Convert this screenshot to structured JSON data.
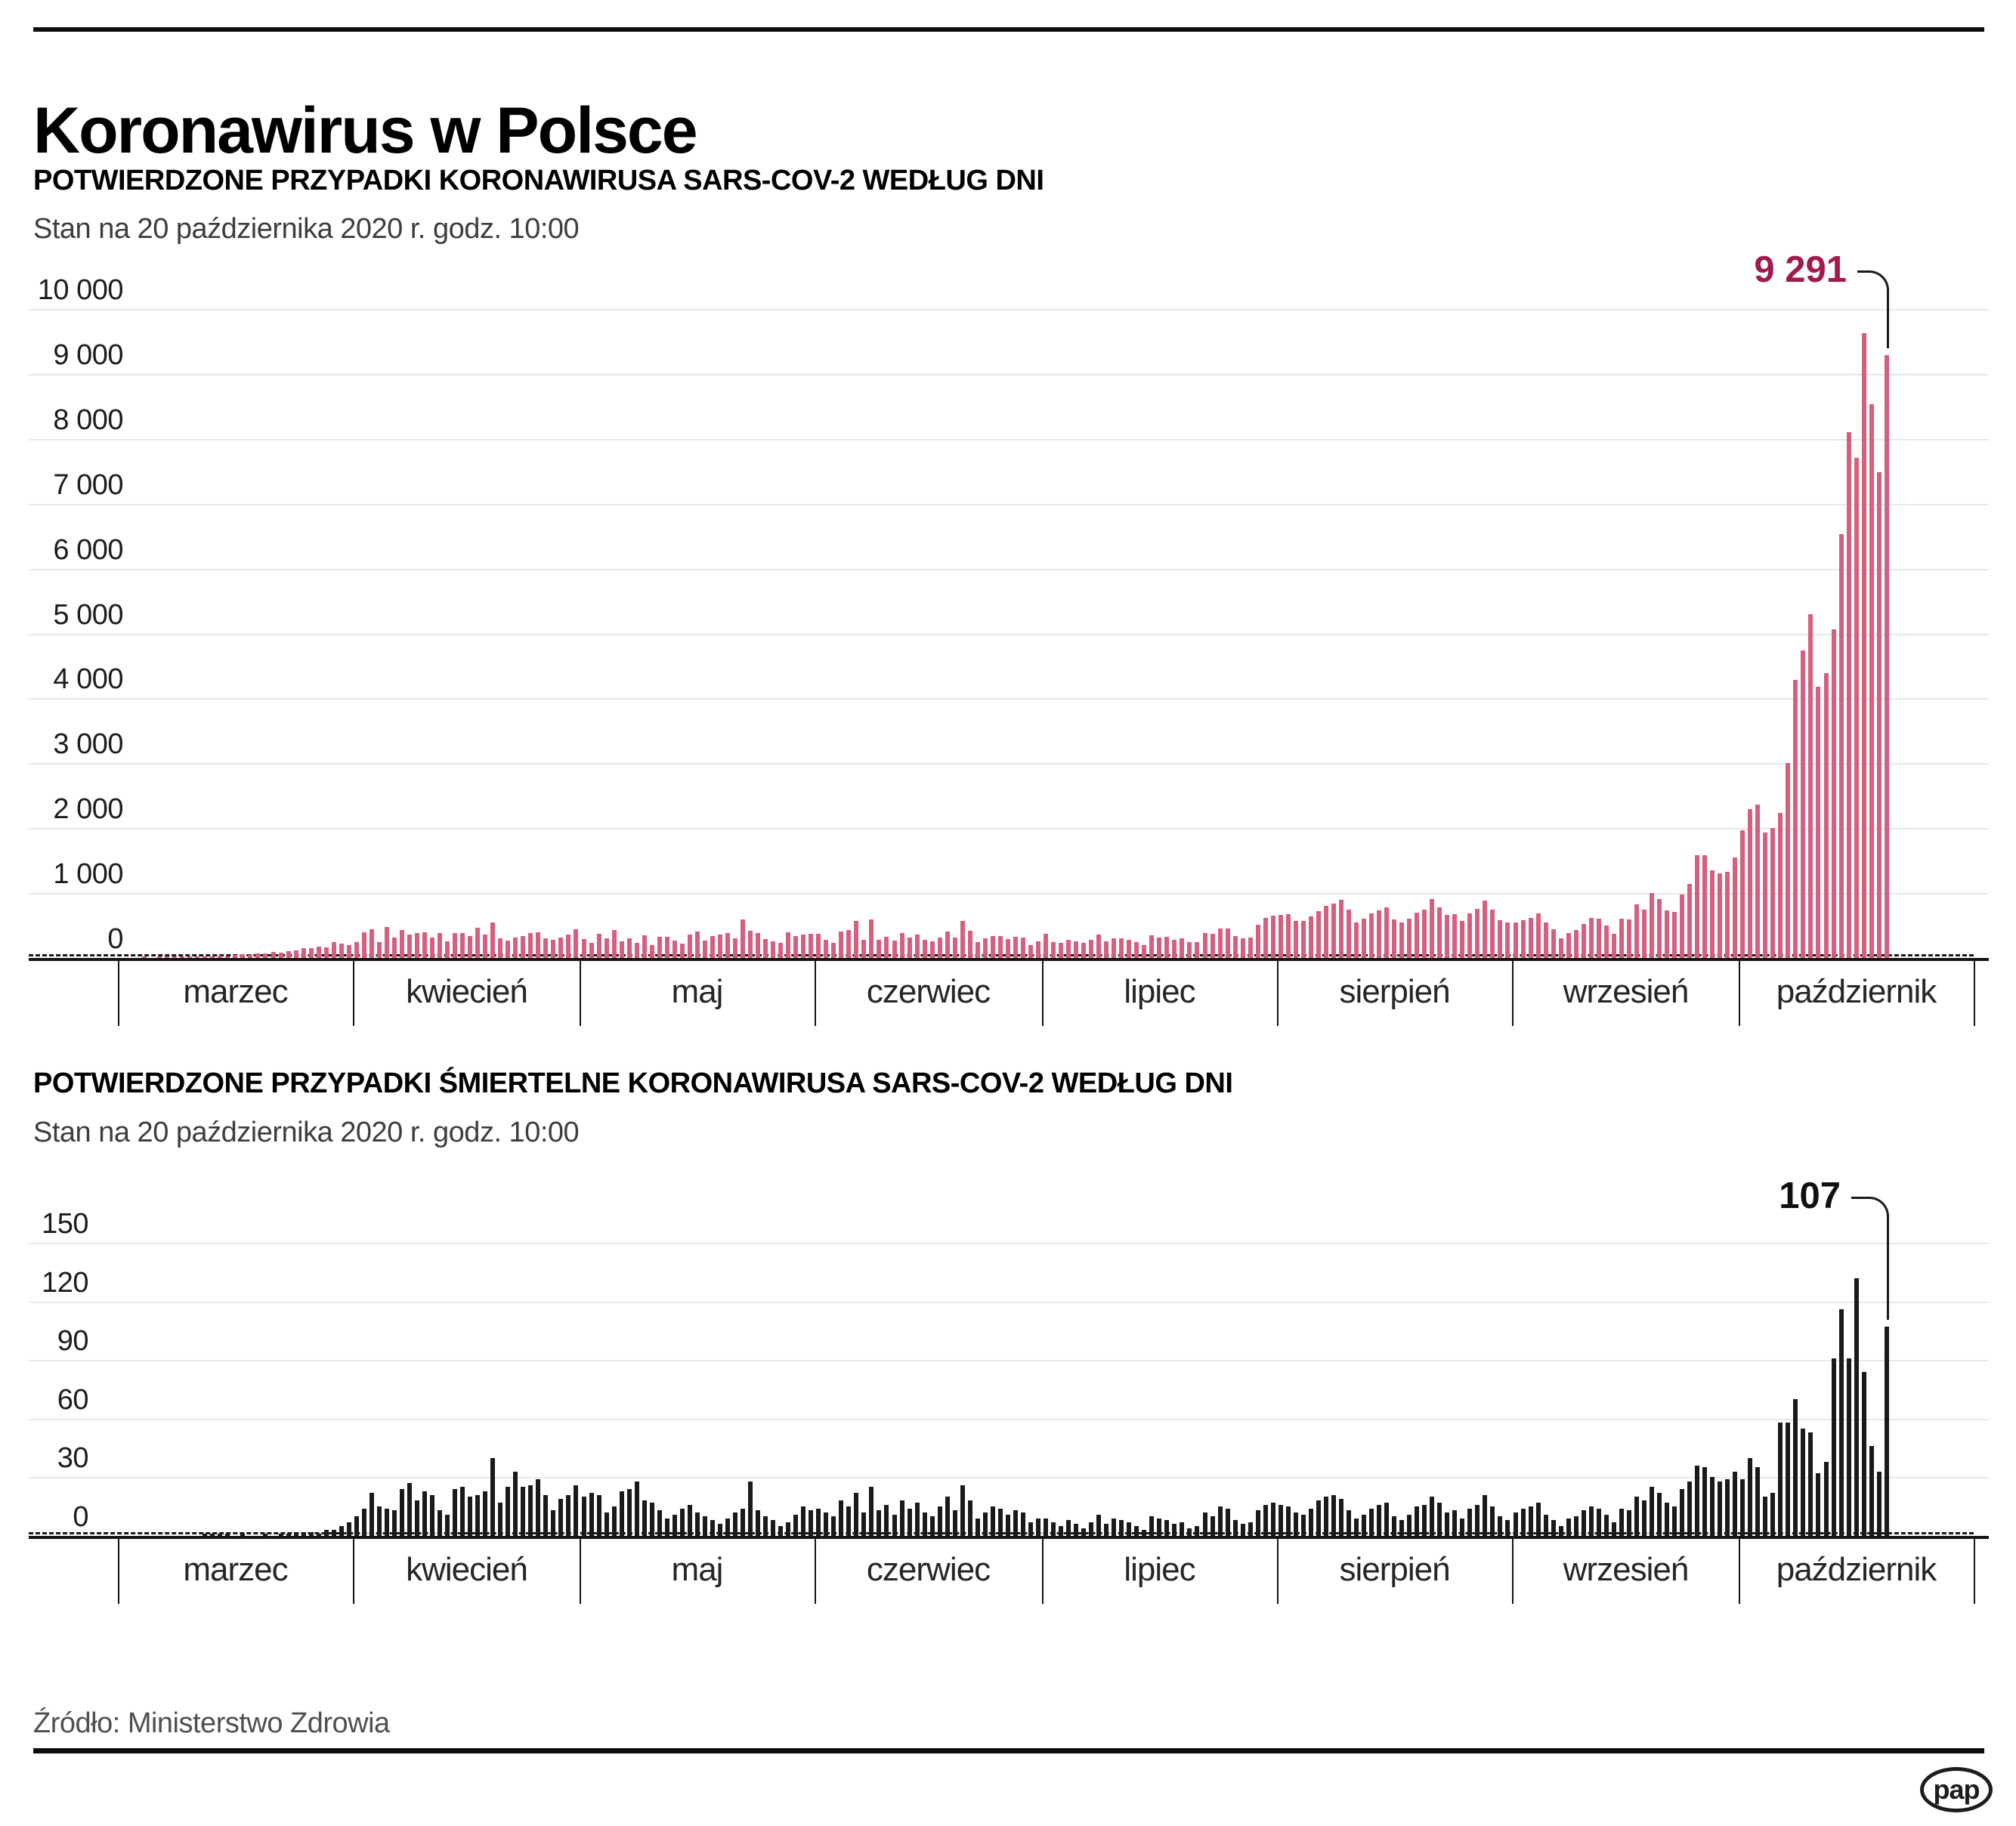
{
  "page": {
    "title": "Koronawirus w Polsce",
    "source": "Źródło: Ministerstwo Zdrowia",
    "logo_text": "pap",
    "grid_color": "#e6e8eb",
    "axis_color": "#141414"
  },
  "chart_data": [
    {
      "type": "bar",
      "title": "POTWIERDZONE PRZYPADKI KORONAWIRUSA SARS-COV-2 WEDŁUG DNI",
      "subtitle": "Stan na 20 października 2020 r. godz. 10:00",
      "ylim": [
        0,
        10000
      ],
      "ytick_values": [
        0,
        1000,
        2000,
        3000,
        4000,
        5000,
        6000,
        7000,
        8000,
        9000,
        10000
      ],
      "ytick_labels": [
        "0",
        "1 000",
        "2 000",
        "3 000",
        "4 000",
        "5 000",
        "6 000",
        "7 000",
        "8 000",
        "9 000",
        "10 000"
      ],
      "grid": true,
      "legend": "none",
      "bar_color": "#d65f7e",
      "annotation": {
        "label": "9 291",
        "value": 9291,
        "color": "#a21a4d",
        "points_to": "ostatni słupek (20 października)"
      },
      "months": [
        {
          "label": "marzec",
          "days": 31,
          "values": [
            0,
            0,
            0,
            1,
            0,
            4,
            1,
            5,
            5,
            6,
            9,
            18,
            19,
            36,
            21,
            52,
            61,
            49,
            68,
            70,
            91,
            82,
            102,
            115,
            152,
            150,
            170,
            168,
            249,
            224,
            193
          ]
        },
        {
          "label": "kwiecień",
          "days": 30,
          "values": [
            243,
            392,
            437,
            244,
            475,
            311,
            435,
            357,
            380,
            401,
            318,
            388,
            260,
            380,
            385,
            336,
            461,
            363,
            545,
            306,
            263,
            313,
            342,
            381,
            401,
            305,
            285,
            316,
            362,
            437
          ]
        },
        {
          "label": "maj",
          "days": 31,
          "values": [
            292,
            235,
            371,
            306,
            425,
            253,
            307,
            232,
            345,
            200,
            330,
            321,
            262,
            225,
            356,
            403,
            272,
            335,
            356,
            383,
            306,
            595,
            416,
            388,
            287,
            255,
            235,
            399,
            340,
            366,
            378
          ]
        },
        {
          "label": "czerwiec",
          "days": 30,
          "values": [
            375,
            285,
            235,
            405,
            435,
            576,
            280,
            599,
            283,
            327,
            264,
            379,
            320,
            364,
            283,
            256,
            317,
            407,
            314,
            576,
            416,
            242,
            300,
            339,
            343,
            294,
            325,
            311,
            193,
            256
          ]
        },
        {
          "label": "lipiec",
          "days": 31,
          "values": [
            371,
            249,
            231,
            278,
            257,
            235,
            279,
            364,
            257,
            299,
            305,
            283,
            247,
            201,
            352,
            316,
            325,
            284,
            302,
            247,
            239,
            380,
            371,
            457,
            458,
            337,
            308,
            316,
            512,
            615,
            657
          ]
        },
        {
          "label": "sierpień",
          "days": 31,
          "values": [
            658,
            680,
            575,
            572,
            640,
            726,
            809,
            843,
            892,
            744,
            551,
            601,
            682,
            731,
            780,
            595,
            542,
            605,
            700,
            746,
            903,
            780,
            662,
            674,
            571,
            682,
            757,
            887,
            745,
            583,
            550
          ]
        },
        {
          "label": "wrzesień",
          "days": 30,
          "values": [
            550,
            580,
            614,
            691,
            548,
            439,
            299,
            385,
            427,
            522,
            618,
            600,
            502,
            378,
            606,
            596,
            827,
            746,
            1002,
            910,
            739,
            711,
            974,
            1136,
            1587,
            1584,
            1350,
            1306,
            1326,
            1552
          ]
        },
        {
          "label": "październik",
          "days": 31,
          "values": [
            1967,
            2292,
            2367,
            1934,
            2006,
            2236,
            3003,
            4280,
            4739,
            5300,
            4178,
            4394,
            5068,
            6526,
            8099,
            7705,
            9622,
            8536,
            7482,
            9291
          ]
        }
      ]
    },
    {
      "type": "bar",
      "title": "POTWIERDZONE PRZYPADKI ŚMIERTELNE KORONAWIRUSA SARS-COV-2 WEDŁUG DNI",
      "subtitle": "Stan na 20 października 2020 r. godz. 10:00",
      "ylim": [
        0,
        150
      ],
      "ytick_values": [
        0,
        30,
        60,
        90,
        120,
        150
      ],
      "ytick_labels": [
        "0",
        "30",
        "60",
        "90",
        "120",
        "150"
      ],
      "grid": true,
      "legend": "none",
      "bar_color": "#1a1a1a",
      "annotation": {
        "label": "107",
        "value": 107,
        "color": "#111111",
        "points_to": "ostatni słupek (20 października)"
      },
      "months": [
        {
          "label": "marzec",
          "days": 31,
          "values": [
            0,
            0,
            0,
            0,
            0,
            0,
            0,
            0,
            0,
            0,
            0,
            1,
            1,
            1,
            1,
            0,
            1,
            0,
            0,
            1,
            0,
            1,
            1,
            2,
            2,
            2,
            1,
            3,
            3,
            5,
            7
          ]
        },
        {
          "label": "kwiecień",
          "days": 30,
          "values": [
            10,
            14,
            22,
            15,
            14,
            13,
            24,
            27,
            18,
            23,
            21,
            13,
            11,
            24,
            25,
            20,
            21,
            23,
            40,
            17,
            25,
            33,
            25,
            26,
            29,
            21,
            13,
            19,
            21,
            26
          ]
        },
        {
          "label": "maj",
          "days": 31,
          "values": [
            20,
            22,
            21,
            12,
            15,
            23,
            24,
            28,
            18,
            17,
            13,
            9,
            11,
            14,
            16,
            12,
            10,
            8,
            6,
            9,
            12,
            14,
            28,
            13,
            10,
            8,
            5,
            7,
            11,
            15,
            13
          ]
        },
        {
          "label": "czerwiec",
          "days": 30,
          "values": [
            14,
            12,
            10,
            18,
            15,
            22,
            12,
            25,
            13,
            16,
            11,
            18,
            14,
            17,
            12,
            10,
            15,
            20,
            13,
            26,
            18,
            9,
            12,
            15,
            14,
            11,
            13,
            12,
            7,
            9
          ]
        },
        {
          "label": "lipiec",
          "days": 31,
          "values": [
            9,
            7,
            5,
            8,
            6,
            4,
            7,
            11,
            6,
            9,
            8,
            7,
            5,
            3,
            10,
            9,
            8,
            6,
            7,
            4,
            5,
            12,
            10,
            15,
            14,
            8,
            6,
            7,
            13,
            16,
            17
          ]
        },
        {
          "label": "sierpień",
          "days": 31,
          "values": [
            16,
            15,
            12,
            11,
            14,
            18,
            20,
            21,
            19,
            13,
            9,
            11,
            14,
            16,
            17,
            10,
            8,
            11,
            15,
            16,
            20,
            17,
            12,
            13,
            9,
            14,
            16,
            21,
            15,
            10,
            8
          ]
        },
        {
          "label": "wrzesień",
          "days": 30,
          "values": [
            12,
            14,
            15,
            17,
            11,
            8,
            5,
            9,
            10,
            13,
            15,
            14,
            11,
            7,
            14,
            13,
            20,
            18,
            25,
            22,
            17,
            15,
            24,
            28,
            36,
            35,
            30,
            28,
            29,
            33
          ]
        },
        {
          "label": "październik",
          "days": 31,
          "values": [
            29,
            40,
            35,
            20,
            22,
            58,
            58,
            70,
            55,
            53,
            32,
            38,
            91,
            116,
            91,
            132,
            84,
            46,
            33,
            107
          ]
        }
      ]
    }
  ]
}
